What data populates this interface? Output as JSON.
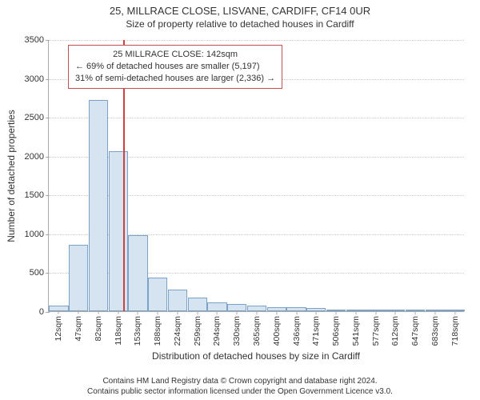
{
  "title": "25, MILLRACE CLOSE, LISVANE, CARDIFF, CF14 0UR",
  "subtitle": "Size of property relative to detached houses in Cardiff",
  "chart": {
    "type": "histogram",
    "background_color": "#ffffff",
    "grid_color": "#cccccc",
    "axis_color": "#aaaaaa",
    "bar_fill": "#d6e4f2",
    "bar_border": "#7da2c7",
    "ref_line_color": "#d04040",
    "x_label": "Distribution of detached houses by size in Cardiff",
    "y_label": "Number of detached properties",
    "ylim": [
      0,
      3500
    ],
    "ytick_step": 500,
    "yticks": [
      0,
      500,
      1000,
      1500,
      2000,
      2500,
      3000,
      3500
    ],
    "categories": [
      "12sqm",
      "47sqm",
      "82sqm",
      "118sqm",
      "153sqm",
      "188sqm",
      "224sqm",
      "259sqm",
      "294sqm",
      "330sqm",
      "365sqm",
      "400sqm",
      "436sqm",
      "471sqm",
      "506sqm",
      "541sqm",
      "577sqm",
      "612sqm",
      "647sqm",
      "683sqm",
      "718sqm"
    ],
    "values": [
      70,
      850,
      2720,
      2060,
      980,
      430,
      280,
      180,
      110,
      90,
      70,
      55,
      50,
      45,
      15,
      10,
      8,
      6,
      5,
      4,
      3
    ],
    "bar_width_ratio": 0.98,
    "ref_value": 142,
    "x_range": [
      12,
      735
    ],
    "info_box": {
      "border_color": "#c05050",
      "line1": "25 MILLRACE CLOSE: 142sqm",
      "line2": "← 69% of detached houses are smaller (5,197)",
      "line3": "31% of semi-detached houses are larger (2,336) →"
    },
    "title_fontsize": 13,
    "subtitle_fontsize": 12,
    "label_fontsize": 12,
    "tick_fontsize": 11
  },
  "footer": {
    "line1": "Contains HM Land Registry data © Crown copyright and database right 2024.",
    "line2": "Contains public sector information licensed under the Open Government Licence v3.0."
  }
}
